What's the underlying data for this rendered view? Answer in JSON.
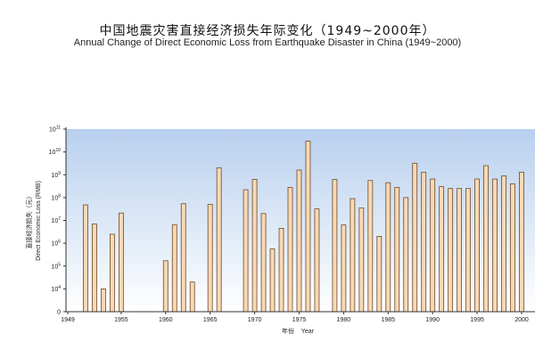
{
  "title_zh": "中国地震灾害直接经济损失年际变化（1949~2000年）",
  "title_en": "Annual Change of Direct Economic Loss from Earthquake Disaster in China (1949~2000)",
  "chart_data": {
    "type": "bar",
    "title": "中国地震灾害直接经济损失年际变化（1949~2000年）",
    "subtitle": "Annual Change of Direct Economic Loss from Earthquake Disaster in China (1949~2000)",
    "xlabel": "年份    Year",
    "ylabel_zh": "直接经济损失（元）",
    "ylabel_en": "Direct Economic Loss (RMB)",
    "yscale": "log",
    "ylim": [
      1,
      100000000000
    ],
    "xlim": [
      1949,
      2000
    ],
    "xticks": [
      "1949",
      "1955",
      "1960",
      "1965",
      "1970",
      "1975",
      "1980",
      "1985",
      "1990",
      "1995",
      "2000"
    ],
    "yticks": [
      {
        "base": "0",
        "exp": ""
      },
      {
        "base": "10",
        "exp": "4"
      },
      {
        "base": "10",
        "exp": "5"
      },
      {
        "base": "10",
        "exp": "6"
      },
      {
        "base": "10",
        "exp": "7"
      },
      {
        "base": "10",
        "exp": "8"
      },
      {
        "base": "10",
        "exp": "9"
      },
      {
        "base": "10",
        "exp": "10"
      },
      {
        "base": "10",
        "exp": "11"
      }
    ],
    "grid": false,
    "bar_color": "#f8d9b4",
    "bar_stroke": "#6b4a2c",
    "background_gradient": [
      "#b8d0ee",
      "#ffffff"
    ],
    "x": [
      1951,
      1952,
      1953,
      1954,
      1955,
      1960,
      1961,
      1962,
      1963,
      1965,
      1966,
      1969,
      1970,
      1971,
      1972,
      1973,
      1974,
      1975,
      1976,
      1977,
      1979,
      1980,
      1981,
      1982,
      1983,
      1984,
      1985,
      1986,
      1987,
      1988,
      1989,
      1990,
      1991,
      1992,
      1993,
      1994,
      1995,
      1996,
      1997,
      1998,
      1999,
      2000
    ],
    "values": [
      48000000,
      7000000,
      10000,
      2500000,
      21000000,
      170000,
      6500000,
      54000000,
      20000,
      50000000,
      2000000000,
      220000000,
      630000000,
      20000000,
      560000,
      4500000,
      280000000,
      1600000000,
      30000000000,
      32000000,
      620000000,
      6300000,
      90000000,
      35000000,
      560000000,
      2000000,
      450000000,
      280000000,
      100000000,
      3200000000,
      1300000000,
      650000000,
      300000000,
      250000000,
      250000000,
      250000000,
      650000000,
      2500000000,
      650000000,
      900000000,
      400000000,
      1300000000
    ]
  }
}
